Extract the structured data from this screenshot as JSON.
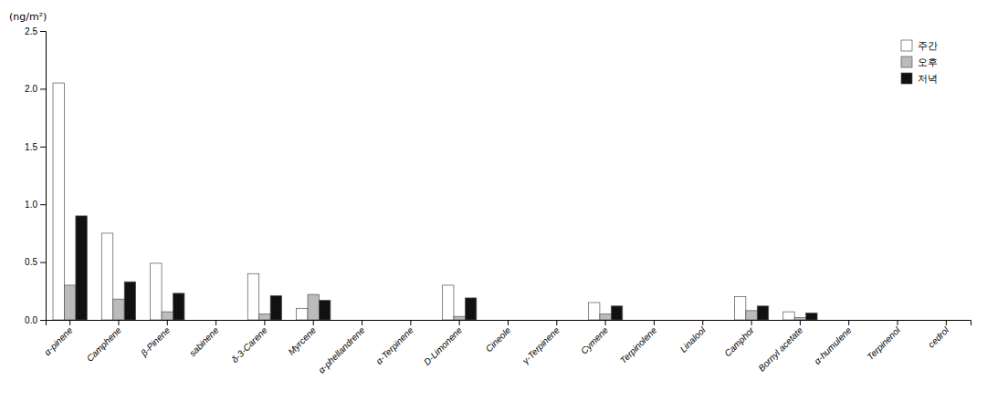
{
  "chart_data": {
    "type": "bar",
    "categories": [
      "α-pinene",
      "Camphene",
      "β-Pinene",
      "sabinene",
      "δ-3-Carene",
      "Myrcene",
      "α-phellandrene",
      "α-Terpinene",
      "D-Limonene",
      "Cineole",
      "γ-Terpinene",
      "Cymene",
      "Terpinolene",
      "Linalool",
      "Camphor",
      "Bornyl acetate",
      "α-humulene",
      "Terpinenol",
      "cedrol"
    ],
    "series": [
      {
        "name": "주간",
        "color": "white",
        "values": [
          2.05,
          0.75,
          0.49,
          0.0,
          0.4,
          0.1,
          0.0,
          0.0,
          0.3,
          0.0,
          0.0,
          0.15,
          0.0,
          0.0,
          0.2,
          0.07,
          0.0,
          0.0,
          0.0
        ]
      },
      {
        "name": "오후",
        "color": "#bbbbbb",
        "values": [
          0.3,
          0.18,
          0.07,
          0.0,
          0.05,
          0.22,
          0.0,
          0.0,
          0.03,
          0.0,
          0.0,
          0.05,
          0.0,
          0.0,
          0.08,
          0.02,
          0.0,
          0.0,
          0.0
        ]
      },
      {
        "name": "저녁",
        "color": "#111111",
        "values": [
          0.9,
          0.33,
          0.23,
          0.0,
          0.21,
          0.17,
          0.0,
          0.0,
          0.19,
          0.0,
          0.0,
          0.12,
          0.0,
          0.0,
          0.12,
          0.06,
          0.0,
          0.0,
          0.0
        ]
      }
    ],
    "ylabel": "(ng/m²)",
    "ylim": [
      0,
      2.5
    ],
    "yticks": [
      {
        "value": 0,
        "label": "0.0"
      },
      0.5,
      {
        "value": 1,
        "label": "1.0"
      },
      1.5,
      {
        "value": 2,
        "label": "2.0"
      },
      2.5
    ],
    "legend": "upper right",
    "grid": false
  }
}
